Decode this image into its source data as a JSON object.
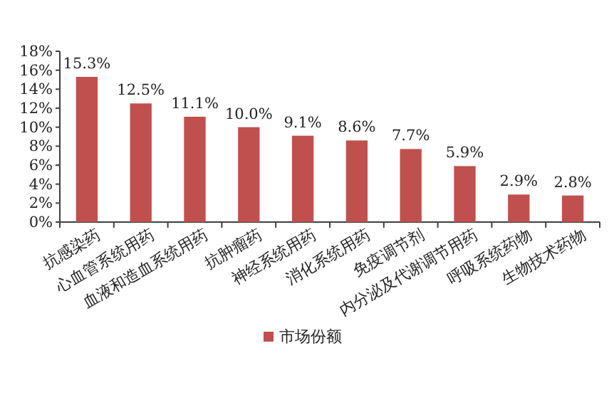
{
  "chart_data": {
    "type": "bar",
    "categories": [
      "抗感染药",
      "心血管系统用药",
      "血液和造血系统用药",
      "抗肿瘤药",
      "神经系统用药",
      "消化系统用药",
      "免疫调节剂",
      "内分泌及代谢调节用药",
      "呼吸系统药物",
      "生物技术药物"
    ],
    "series": [
      {
        "name": "市场份额",
        "color": "#c0504d",
        "values": [
          15.3,
          12.5,
          11.1,
          10.0,
          9.1,
          8.6,
          7.7,
          5.9,
          2.9,
          2.8
        ],
        "value_labels": [
          "15.3%",
          "12.5%",
          "11.1%",
          "10.0%",
          "9.1%",
          "8.6%",
          "7.7%",
          "5.9%",
          "2.9%",
          "2.8%"
        ]
      }
    ],
    "ylim": [
      0,
      18
    ],
    "yticks": [
      {
        "value": 0,
        "label": "0%"
      },
      {
        "value": 2,
        "label": "2%"
      },
      {
        "value": 4,
        "label": "4%"
      },
      {
        "value": 6,
        "label": "6%"
      },
      {
        "value": 8,
        "label": "8%"
      },
      {
        "value": 10,
        "label": "10%"
      },
      {
        "value": 12,
        "label": "12%"
      },
      {
        "value": 14,
        "label": "14%"
      },
      {
        "value": 16,
        "label": "16%"
      },
      {
        "value": 18,
        "label": "18%"
      }
    ],
    "grid": false,
    "legend": "bottom"
  }
}
